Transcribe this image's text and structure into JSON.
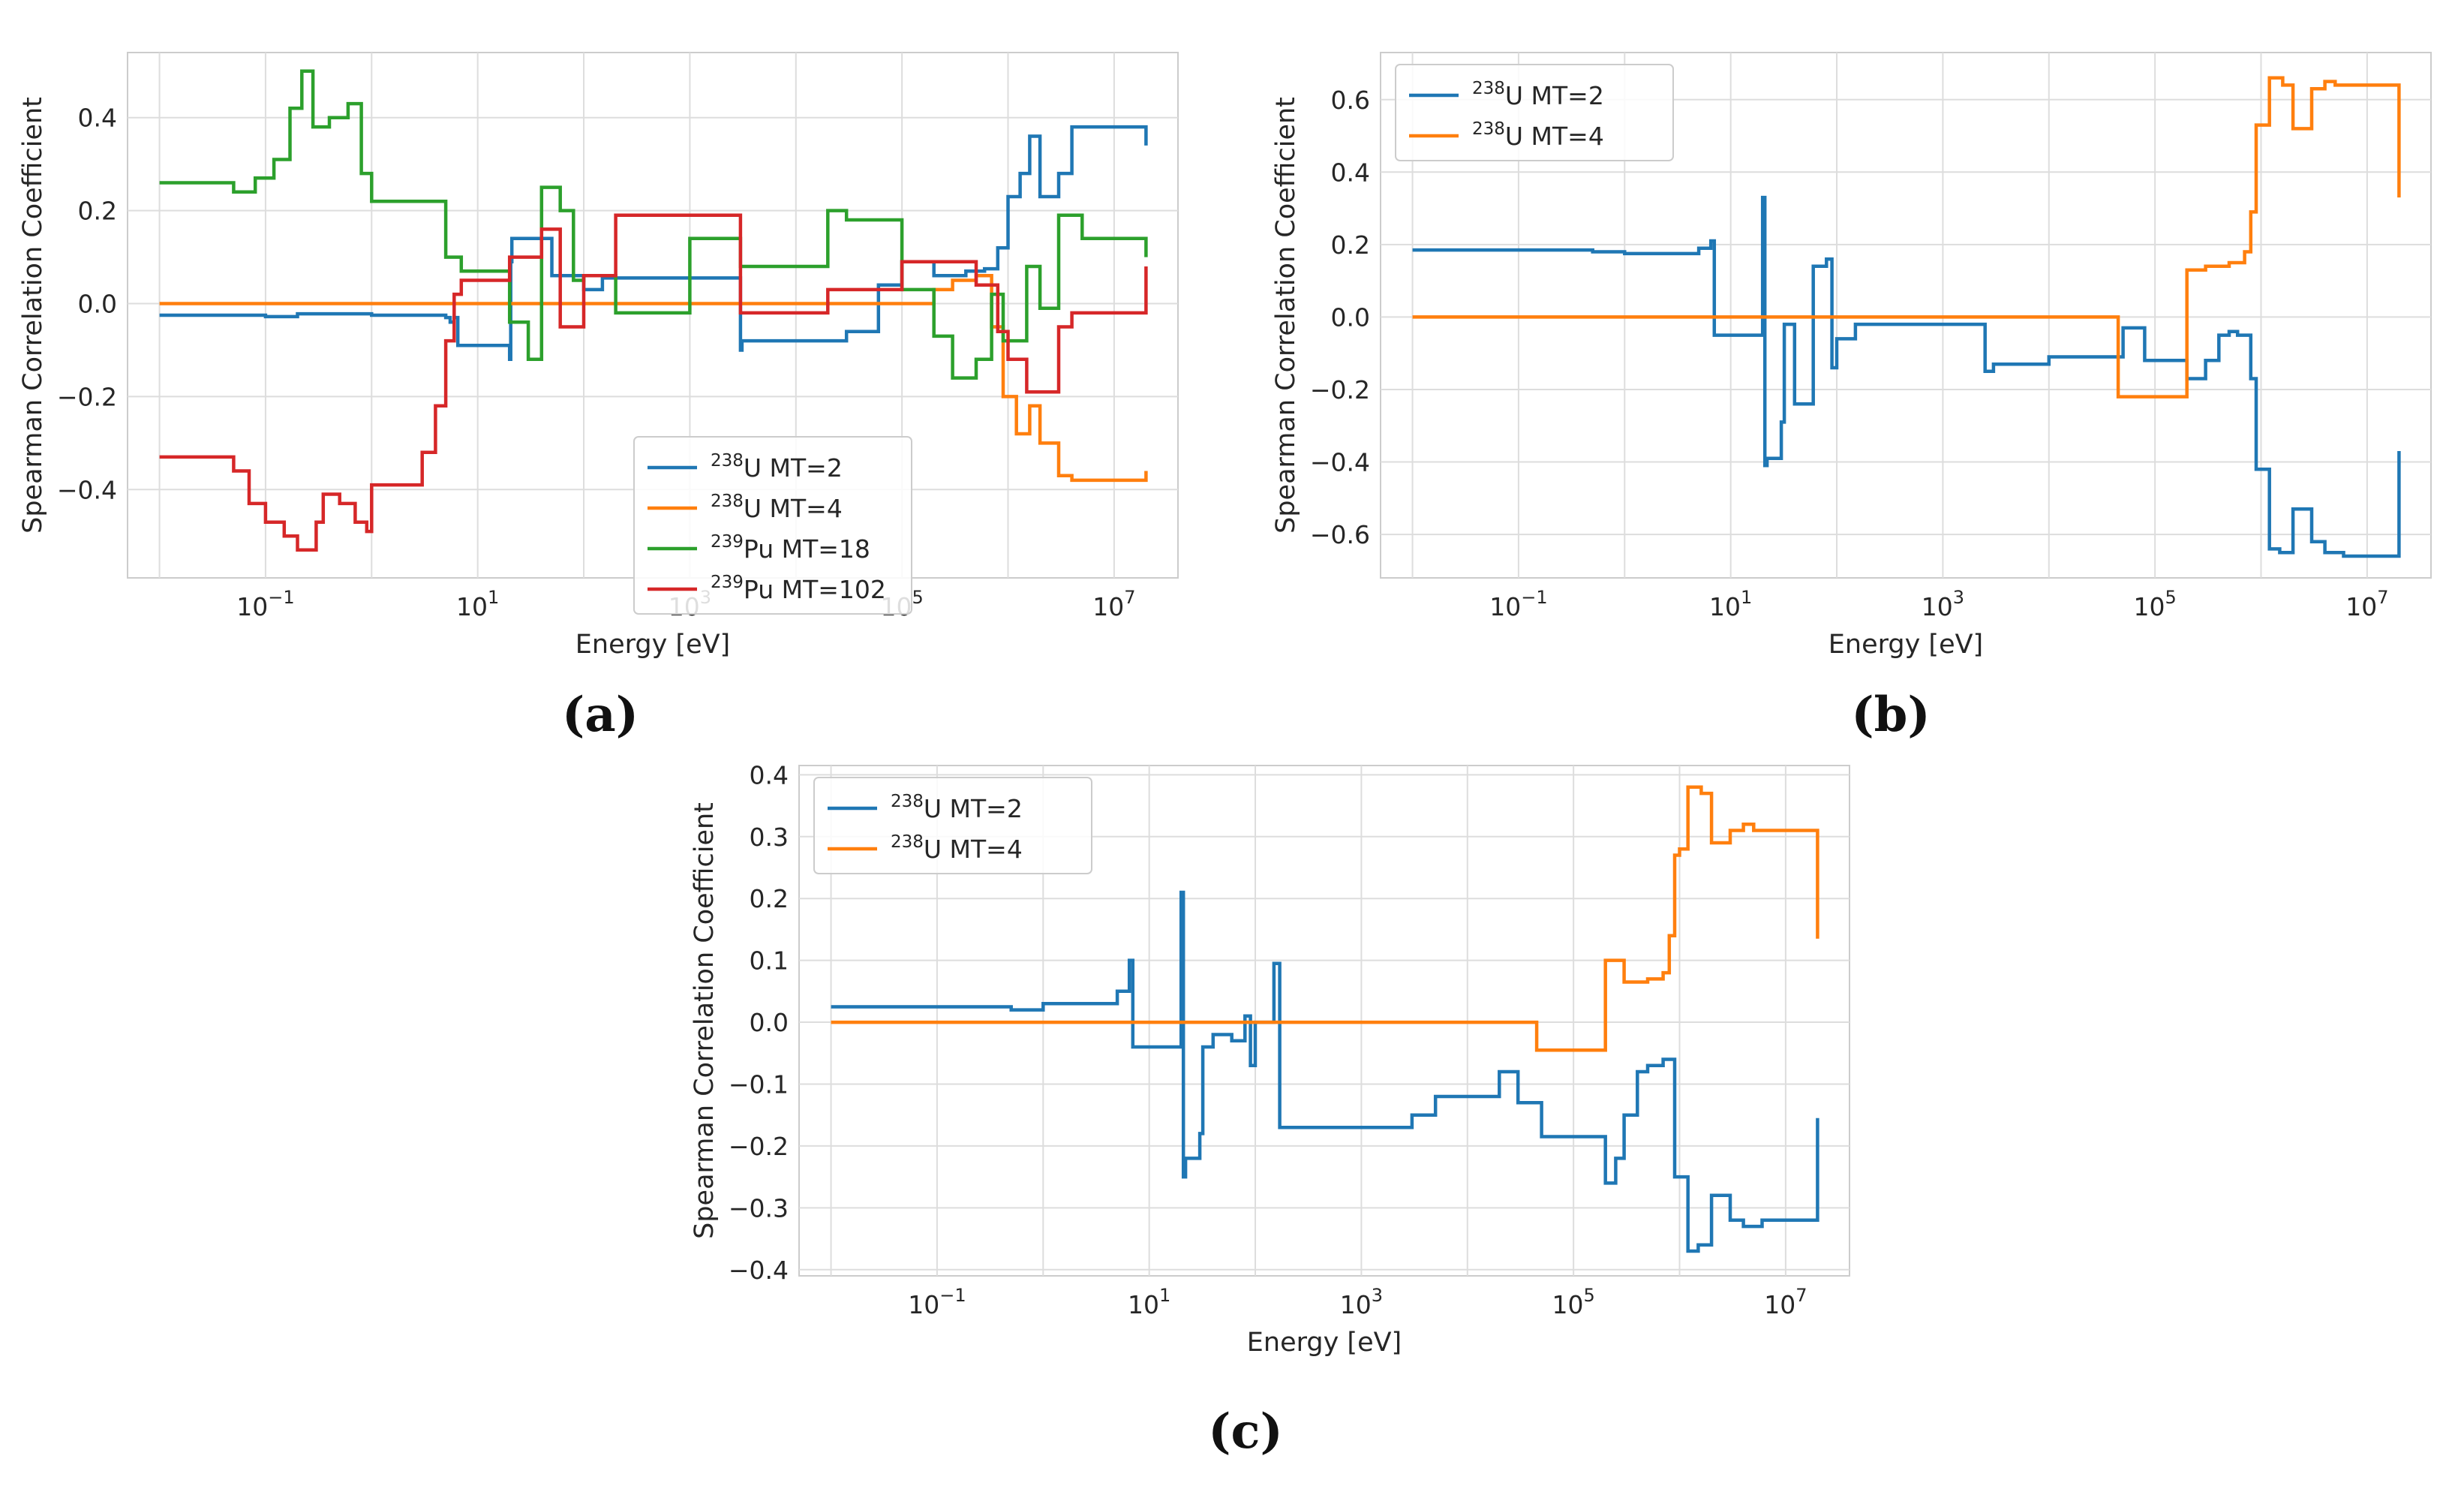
{
  "chart_data": [
    {
      "id": "a",
      "caption": "(a)",
      "type": "line",
      "xscale": "log",
      "xlabel": "Energy [eV]",
      "ylabel": "Spearman Correlation Coefficient",
      "xlim": [
        0.005,
        40000000
      ],
      "ylim": [
        -0.59,
        0.54
      ],
      "xticks": [
        {
          "value": 0.1,
          "base": "10",
          "exp": "−1"
        },
        {
          "value": 10,
          "base": "10",
          "exp": "1"
        },
        {
          "value": 1000,
          "base": "10",
          "exp": "3"
        },
        {
          "value": 100000,
          "base": "10",
          "exp": "5"
        },
        {
          "value": 10000000,
          "base": "10",
          "exp": "7"
        }
      ],
      "yticks": [
        {
          "value": -0.4,
          "label": "−0.4"
        },
        {
          "value": -0.2,
          "label": "−0.2"
        },
        {
          "value": 0.0,
          "label": "0.0"
        },
        {
          "value": 0.2,
          "label": "0.2"
        },
        {
          "value": 0.4,
          "label": "0.4"
        }
      ],
      "legend_position": "lower-center",
      "series": [
        {
          "name": "U MT=2",
          "isotope": "238",
          "color": "#1f77b4",
          "x": [
            0.01,
            0.1,
            0.2,
            1,
            5,
            5.5,
            6,
            6.5,
            20,
            20.5,
            21,
            50,
            100,
            150,
            3000,
            3100,
            30000,
            60000,
            100000,
            200000,
            400000,
            600000,
            800000,
            1000000,
            1300000,
            1600000,
            2000000,
            3000000,
            4000000,
            20000000
          ],
          "y": [
            -0.025,
            -0.028,
            -0.022,
            -0.025,
            -0.03,
            -0.04,
            -0.03,
            -0.09,
            -0.12,
            0.09,
            0.14,
            0.06,
            0.03,
            0.055,
            -0.1,
            -0.08,
            -0.06,
            0.04,
            0.09,
            0.06,
            0.07,
            0.075,
            0.12,
            0.23,
            0.28,
            0.36,
            0.23,
            0.28,
            0.38,
            0.34
          ]
        },
        {
          "name": "U MT=4",
          "isotope": "238",
          "color": "#ff7f0e",
          "x": [
            0.01,
            45000,
            200000,
            300000,
            500000,
            700000,
            900000,
            1200000,
            1600000,
            2000000,
            3000000,
            4000000,
            20000000
          ],
          "y": [
            0.0,
            0.0,
            0.03,
            0.05,
            0.06,
            -0.05,
            -0.2,
            -0.28,
            -0.22,
            -0.3,
            -0.37,
            -0.38,
            -0.36
          ]
        },
        {
          "name": "Pu MT=18",
          "isotope": "239",
          "color": "#2ca02c",
          "x": [
            0.01,
            0.05,
            0.08,
            0.12,
            0.17,
            0.22,
            0.28,
            0.4,
            0.6,
            0.8,
            1,
            3,
            5,
            7,
            20,
            30,
            40,
            60,
            80,
            100,
            200,
            1000,
            3000,
            20000,
            30000,
            100000,
            200000,
            300000,
            500000,
            700000,
            900000,
            1500000,
            2000000,
            3000000,
            5000000,
            20000000
          ],
          "y": [
            0.26,
            0.24,
            0.27,
            0.31,
            0.42,
            0.5,
            0.38,
            0.4,
            0.43,
            0.28,
            0.22,
            0.22,
            0.1,
            0.07,
            -0.04,
            -0.12,
            0.25,
            0.2,
            0.05,
            0.06,
            -0.02,
            0.14,
            0.08,
            0.2,
            0.18,
            0.03,
            -0.07,
            -0.16,
            -0.12,
            0.02,
            -0.08,
            0.08,
            -0.01,
            0.19,
            0.14,
            0.1
          ]
        },
        {
          "name": "Pu MT=102",
          "isotope": "239",
          "color": "#d62728",
          "x": [
            0.01,
            0.05,
            0.07,
            0.1,
            0.15,
            0.2,
            0.3,
            0.35,
            0.5,
            0.7,
            0.9,
            1,
            3,
            4,
            5,
            6,
            7,
            20,
            40,
            60,
            100,
            200,
            3000,
            20000,
            100000,
            500000,
            800000,
            1000000,
            1500000,
            3000000,
            4000000,
            20000000
          ],
          "y": [
            -0.33,
            -0.36,
            -0.43,
            -0.47,
            -0.5,
            -0.53,
            -0.47,
            -0.41,
            -0.43,
            -0.47,
            -0.49,
            -0.39,
            -0.32,
            -0.22,
            -0.08,
            0.02,
            0.05,
            0.1,
            0.16,
            -0.05,
            0.06,
            0.19,
            -0.02,
            0.03,
            0.09,
            0.04,
            -0.06,
            -0.12,
            -0.19,
            -0.05,
            -0.02,
            0.08
          ]
        }
      ]
    },
    {
      "id": "b",
      "caption": "(b)",
      "type": "line",
      "xscale": "log",
      "xlabel": "Energy [eV]",
      "ylabel": "Spearman Correlation Coefficient",
      "xlim": [
        0.005,
        40000000
      ],
      "ylim": [
        -0.72,
        0.73
      ],
      "xticks": [
        {
          "value": 0.1,
          "base": "10",
          "exp": "−1"
        },
        {
          "value": 10,
          "base": "10",
          "exp": "1"
        },
        {
          "value": 1000,
          "base": "10",
          "exp": "3"
        },
        {
          "value": 100000,
          "base": "10",
          "exp": "5"
        },
        {
          "value": 10000000,
          "base": "10",
          "exp": "7"
        }
      ],
      "yticks": [
        {
          "value": -0.6,
          "label": "−0.6"
        },
        {
          "value": -0.4,
          "label": "−0.4"
        },
        {
          "value": -0.2,
          "label": "−0.2"
        },
        {
          "value": 0.0,
          "label": "0.0"
        },
        {
          "value": 0.2,
          "label": "0.2"
        },
        {
          "value": 0.4,
          "label": "0.4"
        },
        {
          "value": 0.6,
          "label": "0.6"
        }
      ],
      "legend_position": "top-left",
      "series": [
        {
          "name": "U MT=2",
          "isotope": "238",
          "color": "#1f77b4",
          "x": [
            0.01,
            0.5,
            1,
            5,
            6.5,
            7,
            20,
            21,
            22,
            30,
            32,
            40,
            60,
            80,
            90,
            100,
            150,
            200,
            2500,
            3000,
            10000,
            50000,
            80000,
            200000,
            300000,
            400000,
            500000,
            600000,
            800000,
            900000,
            1200000,
            1500000,
            2000000,
            3000000,
            4000000,
            6000000,
            20000000
          ],
          "y": [
            0.185,
            0.18,
            0.175,
            0.19,
            0.21,
            -0.05,
            0.33,
            -0.41,
            -0.39,
            -0.29,
            -0.02,
            -0.24,
            0.14,
            0.16,
            -0.14,
            -0.06,
            -0.02,
            -0.02,
            -0.15,
            -0.13,
            -0.11,
            -0.03,
            -0.12,
            -0.17,
            -0.12,
            -0.05,
            -0.04,
            -0.05,
            -0.17,
            -0.42,
            -0.64,
            -0.65,
            -0.53,
            -0.62,
            -0.65,
            -0.66,
            -0.37
          ]
        },
        {
          "name": "U MT=4",
          "isotope": "238",
          "color": "#ff7f0e",
          "x": [
            0.01,
            45000,
            200000,
            300000,
            500000,
            700000,
            800000,
            900000,
            1000000,
            1200000,
            1600000,
            2000000,
            3000000,
            4000000,
            5000000,
            20000000
          ],
          "y": [
            0.0,
            -0.22,
            0.13,
            0.14,
            0.15,
            0.18,
            0.29,
            0.53,
            0.53,
            0.66,
            0.64,
            0.52,
            0.63,
            0.65,
            0.64,
            0.33
          ]
        }
      ]
    },
    {
      "id": "c",
      "caption": "(c)",
      "type": "line",
      "xscale": "log",
      "xlabel": "Energy [eV]",
      "ylabel": "Spearman Correlation Coefficient",
      "xlim": [
        0.005,
        40000000
      ],
      "ylim": [
        -0.41,
        0.415
      ],
      "xticks": [
        {
          "value": 0.1,
          "base": "10",
          "exp": "−1"
        },
        {
          "value": 10,
          "base": "10",
          "exp": "1"
        },
        {
          "value": 1000,
          "base": "10",
          "exp": "3"
        },
        {
          "value": 100000,
          "base": "10",
          "exp": "5"
        },
        {
          "value": 10000000,
          "base": "10",
          "exp": "7"
        }
      ],
      "yticks": [
        {
          "value": -0.4,
          "label": "−0.4"
        },
        {
          "value": -0.3,
          "label": "−0.3"
        },
        {
          "value": -0.2,
          "label": "−0.2"
        },
        {
          "value": -0.1,
          "label": "−0.1"
        },
        {
          "value": 0.0,
          "label": "0.0"
        },
        {
          "value": 0.1,
          "label": "0.1"
        },
        {
          "value": 0.2,
          "label": "0.2"
        },
        {
          "value": 0.3,
          "label": "0.3"
        },
        {
          "value": 0.4,
          "label": "0.4"
        }
      ],
      "legend_position": "top-left",
      "series": [
        {
          "name": "U MT=2",
          "isotope": "238",
          "color": "#1f77b4",
          "x": [
            0.01,
            0.5,
            1,
            5,
            6.5,
            7,
            20,
            21,
            22,
            30,
            32,
            40,
            60,
            80,
            90,
            100,
            150,
            170,
            3000,
            5000,
            20000,
            30000,
            50000,
            200000,
            250000,
            300000,
            400000,
            500000,
            700000,
            900000,
            1200000,
            1500000,
            2000000,
            3000000,
            4000000,
            6000000,
            20000000
          ],
          "y": [
            0.025,
            0.02,
            0.03,
            0.05,
            0.1,
            -0.04,
            0.21,
            -0.25,
            -0.22,
            -0.18,
            -0.04,
            -0.02,
            -0.03,
            0.01,
            -0.07,
            0.0,
            0.095,
            -0.17,
            -0.15,
            -0.12,
            -0.08,
            -0.13,
            -0.185,
            -0.26,
            -0.22,
            -0.15,
            -0.08,
            -0.07,
            -0.06,
            -0.25,
            -0.37,
            -0.36,
            -0.28,
            -0.32,
            -0.33,
            -0.32,
            -0.155
          ]
        },
        {
          "name": "U MT=4",
          "isotope": "238",
          "color": "#ff7f0e",
          "x": [
            0.01,
            45000,
            200000,
            300000,
            500000,
            700000,
            800000,
            900000,
            1000000,
            1200000,
            1600000,
            2000000,
            3000000,
            4000000,
            5000000,
            20000000
          ],
          "y": [
            0.0,
            -0.045,
            0.1,
            0.065,
            0.07,
            0.08,
            0.14,
            0.27,
            0.28,
            0.38,
            0.37,
            0.29,
            0.31,
            0.32,
            0.31,
            0.135
          ]
        }
      ]
    }
  ]
}
